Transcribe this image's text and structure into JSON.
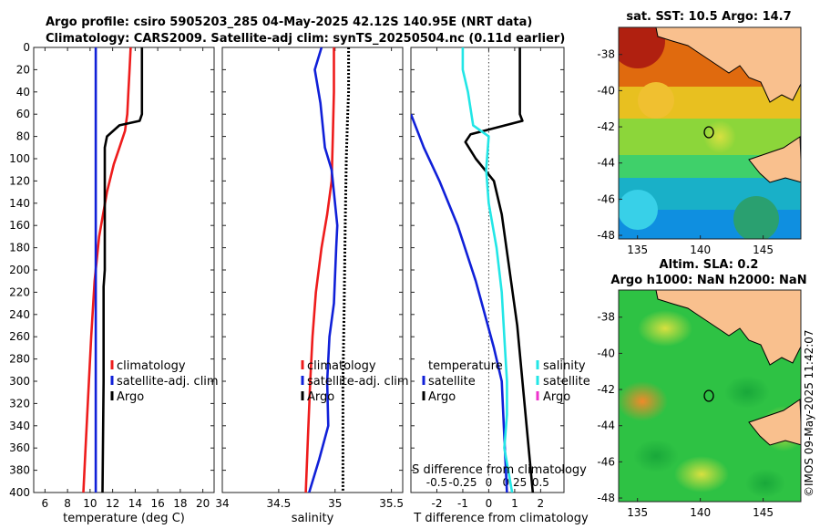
{
  "title_line1": "Argo profile: csiro 5905203_285 04-May-2025 42.12S 140.95E (NRT data)",
  "title_line2": "Climatology: CARS2009. Satellite-adj clim: synTS_20250504.nc (0.11d earlier)",
  "watermark": "©IMOS 09-May-2025 11:42:07",
  "colors": {
    "climatology": "#ee1c1c",
    "satellite": "#1020d8",
    "argo": "#000000",
    "salinity": "#22e6e6",
    "salinity_sat": "#ee33cc"
  },
  "chart_data": [
    {
      "type": "line",
      "name": "temperature",
      "xlabel": "temperature (deg C)",
      "ylabel": "",
      "xlim": [
        5,
        21
      ],
      "ylim": [
        400,
        0
      ],
      "xticks": [
        6,
        8,
        10,
        12,
        14,
        16,
        18,
        20
      ],
      "yticks": [
        0,
        20,
        40,
        60,
        80,
        100,
        120,
        140,
        160,
        180,
        200,
        220,
        240,
        260,
        280,
        300,
        320,
        340,
        360,
        380,
        400
      ],
      "legend": [
        "climatology",
        "satellite-adj. clim",
        "Argo"
      ],
      "series": [
        {
          "name": "climatology",
          "color": "#ee1c1c",
          "dash": false,
          "points": [
            [
              13.6,
              0
            ],
            [
              13.5,
              20
            ],
            [
              13.4,
              40
            ],
            [
              13.3,
              60
            ],
            [
              13.1,
              75
            ],
            [
              12.6,
              90
            ],
            [
              12.1,
              105
            ],
            [
              11.5,
              130
            ],
            [
              10.8,
              170
            ],
            [
              10.4,
              210
            ],
            [
              10.1,
              260
            ],
            [
              9.9,
              300
            ],
            [
              9.6,
              360
            ],
            [
              9.4,
              400
            ]
          ]
        },
        {
          "name": "satellite-adj. clim",
          "color": "#1020d8",
          "dash": false,
          "points": [
            [
              10.5,
              0
            ],
            [
              10.5,
              100
            ],
            [
              10.5,
              200
            ],
            [
              10.5,
              300
            ],
            [
              10.5,
              400
            ]
          ]
        },
        {
          "name": "Argo",
          "color": "#000000",
          "dash": false,
          "points": [
            [
              14.6,
              0
            ],
            [
              14.6,
              30
            ],
            [
              14.6,
              60
            ],
            [
              14.4,
              66
            ],
            [
              12.6,
              70
            ],
            [
              11.5,
              80
            ],
            [
              11.3,
              90
            ],
            [
              11.3,
              120
            ],
            [
              11.3,
              200
            ],
            [
              11.2,
              215
            ],
            [
              11.2,
              300
            ],
            [
              11.1,
              400
            ]
          ]
        }
      ]
    },
    {
      "type": "line",
      "name": "salinity",
      "xlabel": "salinity",
      "ylabel": "",
      "xlim": [
        34,
        35.6
      ],
      "ylim": [
        400,
        0
      ],
      "xticks": [
        34,
        34.5,
        35,
        35.5
      ],
      "xtick_labels": [
        "34",
        "34.5",
        "35",
        "35.5"
      ],
      "legend": [
        "climatology",
        "satellite-adj. clim",
        "Argo"
      ],
      "series": [
        {
          "name": "climatology",
          "color": "#ee1c1c",
          "dash": false,
          "points": [
            [
              34.99,
              0
            ],
            [
              34.99,
              40
            ],
            [
              34.98,
              80
            ],
            [
              34.97,
              120
            ],
            [
              34.93,
              150
            ],
            [
              34.88,
              180
            ],
            [
              34.83,
              220
            ],
            [
              34.8,
              260
            ],
            [
              34.78,
              300
            ],
            [
              34.76,
              350
            ],
            [
              34.74,
              400
            ]
          ]
        },
        {
          "name": "satellite-adj. clim",
          "color": "#1020d8",
          "dash": false,
          "points": [
            [
              34.88,
              0
            ],
            [
              34.82,
              20
            ],
            [
              34.87,
              50
            ],
            [
              34.91,
              90
            ],
            [
              34.97,
              110
            ],
            [
              35.0,
              140
            ],
            [
              35.02,
              160
            ],
            [
              35.01,
              180
            ],
            [
              34.99,
              230
            ],
            [
              34.95,
              260
            ],
            [
              34.93,
              300
            ],
            [
              34.94,
              340
            ],
            [
              34.86,
              370
            ],
            [
              34.77,
              400
            ]
          ]
        },
        {
          "name": "Argo",
          "color": "#000000",
          "dash": true,
          "points": [
            [
              35.12,
              0
            ],
            [
              35.12,
              40
            ],
            [
              35.11,
              65
            ],
            [
              35.1,
              100
            ],
            [
              35.09,
              160
            ],
            [
              35.08,
              240
            ],
            [
              35.07,
              300
            ],
            [
              35.07,
              400
            ]
          ]
        }
      ]
    },
    {
      "type": "line",
      "name": "difference",
      "xlabel": "T difference from climatology",
      "top_label": "S difference from climatology",
      "xlim": [
        -3,
        2.9
      ],
      "ylim": [
        400,
        0
      ],
      "xticks": [
        -2,
        -1,
        0,
        1,
        2
      ],
      "top_xticks": [
        -0.5,
        -0.25,
        0,
        0.25,
        0.5
      ],
      "top_scale": 4,
      "legend_left": [
        "temperature",
        "satellite",
        "Argo"
      ],
      "legend_right": [
        "salinity",
        "satellite",
        "Argo"
      ],
      "series": [
        {
          "name": "satellite",
          "color": "#1020d8",
          "dash": false,
          "points": [
            [
              -3.0,
              60
            ],
            [
              -2.5,
              90
            ],
            [
              -1.9,
              120
            ],
            [
              -1.2,
              160
            ],
            [
              -0.5,
              210
            ],
            [
              0.2,
              270
            ],
            [
              0.5,
              300
            ],
            [
              0.6,
              350
            ],
            [
              0.7,
              400
            ]
          ]
        },
        {
          "name": "Argo",
          "color": "#000000",
          "dash": false,
          "points": [
            [
              1.2,
              0
            ],
            [
              1.2,
              60
            ],
            [
              1.3,
              66
            ],
            [
              -0.7,
              78
            ],
            [
              -0.9,
              85
            ],
            [
              -0.5,
              100
            ],
            [
              0.2,
              120
            ],
            [
              0.5,
              150
            ],
            [
              0.8,
              200
            ],
            [
              1.1,
              250
            ],
            [
              1.3,
              300
            ],
            [
              1.5,
              350
            ],
            [
              1.7,
              400
            ]
          ]
        },
        {
          "name": "salinity",
          "color": "#22e6e6",
          "dash": false,
          "points": [
            [
              -1.0,
              0
            ],
            [
              -1.0,
              20
            ],
            [
              -0.8,
              40
            ],
            [
              -0.6,
              70
            ],
            [
              0.0,
              80
            ],
            [
              -0.1,
              110
            ],
            [
              0.0,
              140
            ],
            [
              0.3,
              180
            ],
            [
              0.5,
              220
            ],
            [
              0.6,
              260
            ],
            [
              0.7,
              300
            ],
            [
              0.7,
              330
            ],
            [
              0.6,
              360
            ],
            [
              0.9,
              400
            ]
          ]
        }
      ]
    },
    {
      "type": "heatmap",
      "name": "sst_map",
      "title": "sat. SST: 10.5 Argo: 14.7",
      "xlim": [
        133.5,
        148
      ],
      "ylim": [
        -48.2,
        -36.5
      ],
      "xticks": [
        135,
        140,
        145
      ],
      "yticks": [
        -38,
        -40,
        -42,
        -44,
        -46,
        -48
      ],
      "marker": [
        141,
        -42.1
      ]
    },
    {
      "type": "heatmap",
      "name": "sla_map",
      "title_line1": "Altim. SLA: 0.2",
      "title_line2": "Argo h1000: NaN h2000: NaN",
      "xlim": [
        133.5,
        148
      ],
      "ylim": [
        -48.2,
        -36.5
      ],
      "xticks": [
        135,
        140,
        145
      ],
      "yticks": [
        -38,
        -40,
        -42,
        -44,
        -46,
        -48
      ],
      "marker": [
        141,
        -42.1
      ]
    }
  ]
}
